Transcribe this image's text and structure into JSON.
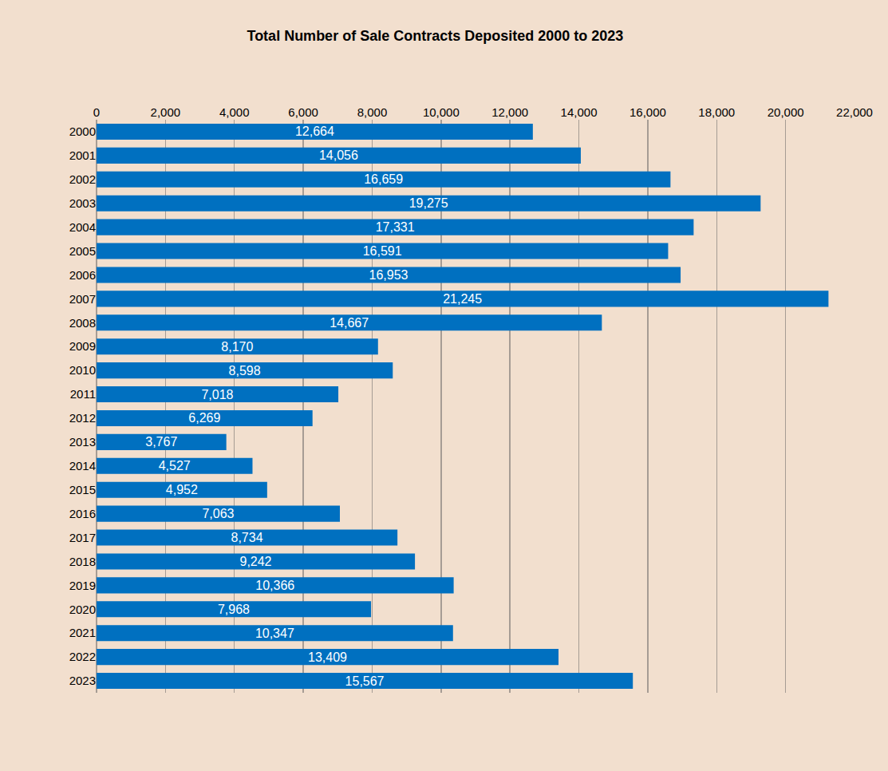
{
  "chart_data": {
    "type": "bar",
    "orientation": "horizontal",
    "title": "Total Number of Sale Contracts Deposited 2000 to 2023",
    "categories": [
      "2000",
      "2001",
      "2002",
      "2003",
      "2004",
      "2005",
      "2006",
      "2007",
      "2008",
      "2009",
      "2010",
      "2011",
      "2012",
      "2013",
      "2014",
      "2015",
      "2016",
      "2017",
      "2018",
      "2019",
      "2020",
      "2021",
      "2022",
      "2023"
    ],
    "values": [
      12664,
      14056,
      16659,
      19275,
      17331,
      16591,
      16953,
      21245,
      14667,
      8170,
      8598,
      7018,
      6269,
      3767,
      4527,
      4952,
      7063,
      8734,
      9242,
      10366,
      7968,
      10347,
      13409,
      15567
    ],
    "value_labels": [
      "12,664",
      "14,056",
      "16,659",
      "19,275",
      "17,331",
      "16,591",
      "16,953",
      "21,245",
      "14,667",
      "8,170",
      "8,598",
      "7,018",
      "6,269",
      "3,767",
      "4,527",
      "4,952",
      "7,063",
      "8,734",
      "9,242",
      "10,366",
      "7,968",
      "10,347",
      "13,409",
      "15,567"
    ],
    "data_labels": true,
    "color": "#0070C0",
    "xlim": [
      0,
      22000
    ],
    "xticks": [
      0,
      {
        "value": 2000,
        "label": "2,000"
      },
      {
        "value": 4000,
        "label": "4,000"
      },
      {
        "value": 6000,
        "label": "6,000"
      },
      {
        "value": 8000,
        "label": "8,000"
      },
      {
        "value": 10000,
        "label": "10,000"
      },
      {
        "value": 12000,
        "label": "12,000"
      },
      {
        "value": 14000,
        "label": "14,000"
      },
      {
        "value": 16000,
        "label": "16,000"
      },
      {
        "value": 18000,
        "label": "18,000"
      },
      {
        "value": 20000,
        "label": "20,000"
      },
      {
        "value": 22000,
        "label": "22,000"
      }
    ],
    "grid": true
  }
}
